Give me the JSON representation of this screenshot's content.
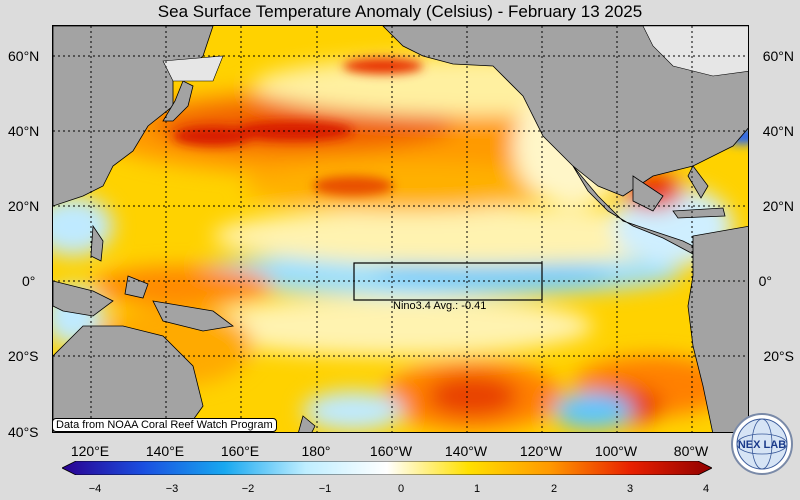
{
  "title": "Sea Surface Temperature Anomaly (Celsius) - February 13 2025",
  "lat_labels": [
    "60°N",
    "40°N",
    "20°N",
    "0°",
    "20°S",
    "40°S"
  ],
  "lon_labels": [
    "120°E",
    "140°E",
    "160°E",
    "180°",
    "160°W",
    "140°W",
    "120°W",
    "100°W",
    "80°W"
  ],
  "nino_box_label": "Nino3.4 Avg.: -0.41",
  "credit": "Data from NOAA Coral Reef Watch Program",
  "colorbar": {
    "ticks": [
      "−4",
      "−3",
      "−2",
      "−1",
      "0",
      "1",
      "2",
      "3",
      "4"
    ],
    "min": -4,
    "max": 4,
    "colors": [
      "#2a0090",
      "#1a4fe0",
      "#18a8f0",
      "#bfeeff",
      "#ffffff",
      "#ffe000",
      "#ff9900",
      "#e82000",
      "#900000"
    ]
  },
  "logo_text": "NEX LAB",
  "colors": {
    "land": "#a3a3a3",
    "land_ice": "#e8e8e8",
    "warm": "#ff9a00",
    "hot": "#e83000",
    "cool": "#7fd8ff",
    "neutral": "#fff6c8"
  }
}
